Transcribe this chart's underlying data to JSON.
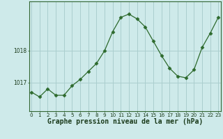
{
  "x": [
    0,
    1,
    2,
    3,
    4,
    5,
    6,
    7,
    8,
    9,
    10,
    11,
    12,
    13,
    14,
    15,
    16,
    17,
    18,
    19,
    20,
    21,
    22,
    23
  ],
  "y": [
    1016.7,
    1016.55,
    1016.8,
    1016.6,
    1016.6,
    1016.9,
    1017.1,
    1017.35,
    1017.6,
    1018.0,
    1018.6,
    1019.05,
    1019.15,
    1019.0,
    1018.75,
    1018.3,
    1017.85,
    1017.45,
    1017.2,
    1017.15,
    1017.4,
    1018.1,
    1018.55,
    1019.05
  ],
  "line_color": "#2d6a2d",
  "marker": "D",
  "marker_size": 2.5,
  "bg_color": "#ceeaea",
  "grid_color": "#aacece",
  "xlabel": "Graphe pression niveau de la mer (hPa)",
  "yticks": [
    1017,
    1018
  ],
  "ylim": [
    1016.1,
    1019.55
  ],
  "xlim": [
    -0.3,
    23.3
  ],
  "xticks": [
    0,
    1,
    2,
    3,
    4,
    5,
    6,
    7,
    8,
    9,
    10,
    11,
    12,
    13,
    14,
    15,
    16,
    17,
    18,
    19,
    20,
    21,
    22,
    23
  ],
  "tick_fontsize": 5.2,
  "ylabel_fontsize": 5.5,
  "xlabel_fontsize": 7.0
}
